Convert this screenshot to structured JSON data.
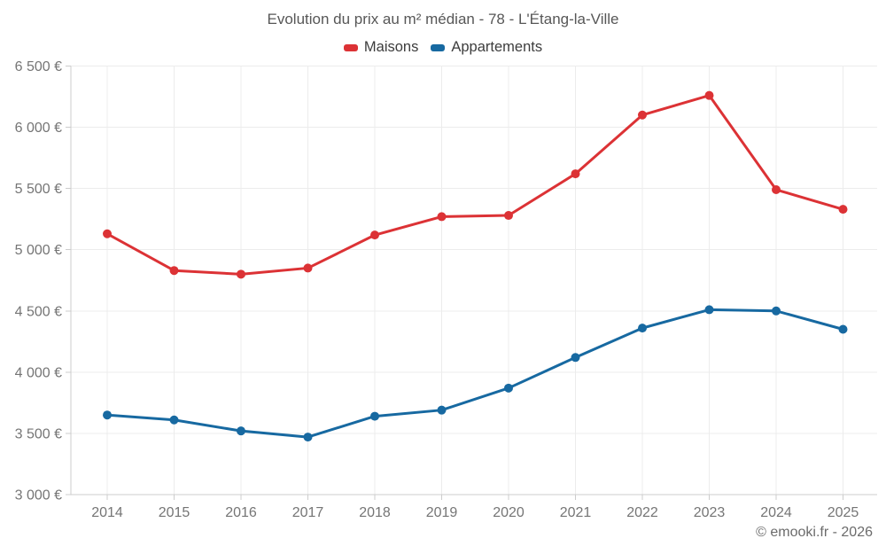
{
  "page": {
    "footer": "© emooki.fr - 2026"
  },
  "chart_data": {
    "type": "line",
    "title": "Evolution du prix au m² médian - 78 - L'Étang-la-Ville",
    "x": [
      2014,
      2015,
      2016,
      2017,
      2018,
      2019,
      2020,
      2021,
      2022,
      2023,
      2024,
      2025
    ],
    "series": [
      {
        "name": "Maisons",
        "color": "#dc3235",
        "values": [
          5130,
          4830,
          4800,
          4850,
          5120,
          5270,
          5280,
          5620,
          6100,
          6260,
          5490,
          5330
        ]
      },
      {
        "name": "Appartements",
        "color": "#1769a1",
        "values": [
          3650,
          3610,
          3520,
          3470,
          3640,
          3690,
          3870,
          4120,
          4360,
          4510,
          4500,
          4350
        ]
      }
    ],
    "xlabel": "",
    "ylabel": "",
    "ylim": [
      3000,
      6500
    ],
    "ytick_step": 500,
    "ytick_labels": [
      "3 000 €",
      "3 500 €",
      "4 000 €",
      "4 500 €",
      "5 000 €",
      "5 500 €",
      "6 000 €",
      "6 500 €"
    ],
    "grid": true,
    "legend_position": "top"
  }
}
